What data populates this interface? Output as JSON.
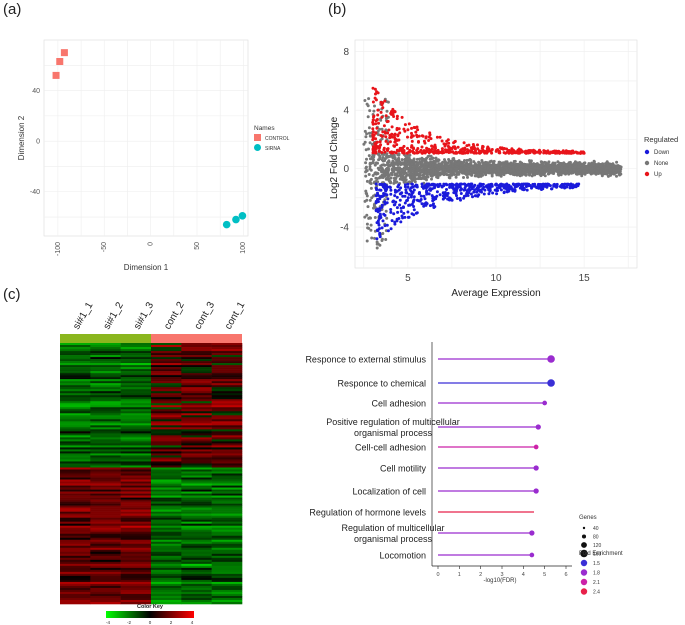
{
  "panel_labels": {
    "a": "(a)",
    "b": "(b)",
    "c": "(c)"
  },
  "colors": {
    "control": "#f8766d",
    "sirna": "#00bfc4",
    "down": "#1a1adb",
    "none": "#777777",
    "up": "#e8141a",
    "heat_green": "#00ff00",
    "heat_red": "#ff0000",
    "bar_control": "#f8766d",
    "bar_sirna": "#8ab61e"
  },
  "chart_data": [
    {
      "id": "a",
      "type": "scatter",
      "title": "",
      "xlabel": "Dimension 1",
      "ylabel": "Dimension 2",
      "xlim": [
        -115,
        105
      ],
      "ylim": [
        -75,
        80
      ],
      "xticks": [
        "-100",
        "-50",
        "0",
        "50",
        "100"
      ],
      "yticks": [
        "40",
        "0",
        "-40"
      ],
      "legend_title": "Names",
      "legend_position": "right",
      "series": [
        {
          "name": "CONTROL",
          "points": [
            [
              -102,
              52
            ],
            [
              -98,
              63
            ],
            [
              -93,
              70
            ]
          ]
        },
        {
          "name": "SIRNA",
          "points": [
            [
              82,
              -66
            ],
            [
              92,
              -62
            ],
            [
              99,
              -59
            ]
          ]
        }
      ]
    },
    {
      "id": "b",
      "type": "scatter",
      "title": "",
      "xlabel": "Average Expression",
      "ylabel": "Log2 Fold Change",
      "xlim": [
        2,
        18
      ],
      "ylim": [
        -6.8,
        8.8
      ],
      "xticks": [
        "5",
        "10",
        "15"
      ],
      "yticks": [
        "8",
        "4",
        "0",
        "-4"
      ],
      "legend_title": "Regulated",
      "legend_position": "right",
      "series": [
        {
          "name": "Down",
          "description": "log2FC between -5 and -1, average expression 3-15"
        },
        {
          "name": "None",
          "description": "log2FC near 0, average expression 2.5-17"
        },
        {
          "name": "Up",
          "description": "log2FC between 1 and 6, average expression 3-15"
        }
      ]
    },
    {
      "id": "c",
      "type": "heatmap",
      "title": "",
      "columns": [
        "si#1_1",
        "si#1_2",
        "si#1_3",
        "cont_2",
        "cont_3",
        "cont_1"
      ],
      "color_key_title": "Color Key",
      "color_key_ticks": [
        "-4",
        "-2",
        "0",
        "2",
        "4"
      ],
      "range": [
        -4,
        4
      ],
      "pattern": "top block genes down in siRNA samples, bottom block genes up in siRNA samples"
    },
    {
      "id": "d",
      "type": "lollipop",
      "title": "",
      "xlabel": "-log10(FDR)",
      "xlim": [
        0,
        6
      ],
      "xticks": [
        "0",
        "1",
        "2",
        "3",
        "4",
        "5",
        "6"
      ],
      "categories": [
        "Responce to external stimulus",
        "Responce to chemical",
        "Cell adhesion",
        "Positive regulation of multicellular organismal process",
        "Cell-cell adhesion",
        "Cell motility",
        "Localization of cell",
        "Regulation of hormone levels",
        "Regulation of multicellular organismal process",
        "Locomotion"
      ],
      "values": [
        5.3,
        5.3,
        5.0,
        4.7,
        4.6,
        4.6,
        4.6,
        4.5,
        4.4,
        4.4
      ],
      "genes": [
        160,
        160,
        60,
        80,
        60,
        80,
        80,
        0,
        80,
        60
      ],
      "fold_enrichment": [
        1.8,
        1.5,
        1.8,
        1.8,
        2.1,
        1.8,
        1.8,
        2.4,
        1.8,
        1.8
      ],
      "legend_genes_title": "Genes",
      "legend_genes_ticks": [
        "40",
        "80",
        "120",
        "160"
      ],
      "legend_fe_title": "Fold Enrichment",
      "legend_fe_ticks": [
        "1.5",
        "1.8",
        "2.1",
        "2.4"
      ]
    }
  ]
}
